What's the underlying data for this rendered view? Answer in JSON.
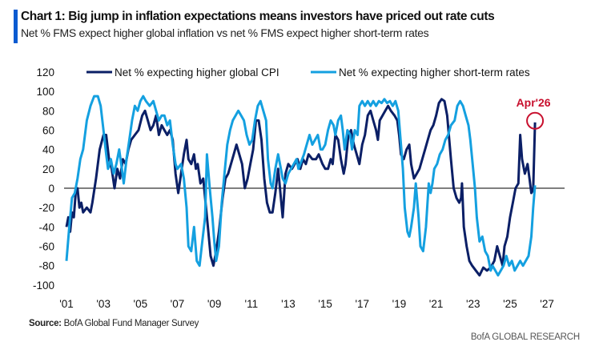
{
  "header": {
    "title": "Chart 1: Big jump in inflation expectations means investors have priced out rate cuts",
    "subtitle": "Net % FMS expect higher global inflation vs net % FMS expect higher short-term rates"
  },
  "footer": {
    "source_label": "Source:",
    "source_text": " BofA Global Fund Manager Survey",
    "brand": "BofA GLOBAL RESEARCH"
  },
  "colors": {
    "cpi": "#0b1f66",
    "rates": "#14a0e0",
    "zero_line": "#555555",
    "annotation": "#c8102e",
    "title_bar": "#0a5bd1"
  },
  "chart_data": {
    "type": "line",
    "title": "Chart 1: Big jump in inflation expectations means investors have priced out rate cuts",
    "subtitle": "Net % FMS expect higher global inflation vs net % FMS expect higher short-term rates",
    "xlabel": "",
    "ylabel": "",
    "xlim": [
      2001,
      2027.5
    ],
    "ylim": [
      -100,
      120
    ],
    "yticks": [
      120,
      100,
      80,
      60,
      40,
      20,
      0,
      -20,
      -40,
      -60,
      -80,
      -100
    ],
    "xticks": [
      {
        "value": 2001,
        "label": "'01"
      },
      {
        "value": 2003,
        "label": "'03"
      },
      {
        "value": 2005,
        "label": "'05"
      },
      {
        "value": 2007,
        "label": "'07"
      },
      {
        "value": 2009,
        "label": "'09"
      },
      {
        "value": 2011,
        "label": "'11"
      },
      {
        "value": 2013,
        "label": "'13"
      },
      {
        "value": 2015,
        "label": "'15"
      },
      {
        "value": 2017,
        "label": "'17"
      },
      {
        "value": 2019,
        "label": "'19"
      },
      {
        "value": 2021,
        "label": "'21"
      },
      {
        "value": 2023,
        "label": "'23"
      },
      {
        "value": 2025,
        "label": "'25"
      },
      {
        "value": 2027,
        "label": "'27"
      }
    ],
    "grid": false,
    "zero_line": true,
    "legend_position": "top",
    "annotation": {
      "label": "Apr'26",
      "x": 2026.35,
      "y": 68,
      "series": "Net % expecting higher global CPI"
    },
    "series": [
      {
        "name": "Net % expecting higher global CPI",
        "color": "#0b1f66",
        "x": [
          2001.0,
          2001.1,
          2001.2,
          2001.3,
          2001.4,
          2001.5,
          2001.6,
          2001.7,
          2001.8,
          2001.9,
          2002.1,
          2002.3,
          2002.4,
          2002.6,
          2002.8,
          2003.0,
          2003.15,
          2003.3,
          2003.45,
          2003.6,
          2003.75,
          2003.9,
          2004.05,
          2004.2,
          2004.35,
          2004.5,
          2004.7,
          2004.9,
          2005.1,
          2005.25,
          2005.4,
          2005.55,
          2005.7,
          2005.85,
          2006.0,
          2006.15,
          2006.3,
          2006.45,
          2006.6,
          2006.75,
          2006.9,
          2007.05,
          2007.2,
          2007.35,
          2007.5,
          2007.6,
          2007.75,
          2007.9,
          2008.0,
          2008.1,
          2008.25,
          2008.4,
          2008.5,
          2008.65,
          2008.8,
          2008.95,
          2009.1,
          2009.25,
          2009.45,
          2009.6,
          2009.75,
          2009.9,
          2010.05,
          2010.2,
          2010.35,
          2010.5,
          2010.65,
          2010.8,
          2010.95,
          2011.1,
          2011.25,
          2011.4,
          2011.55,
          2011.7,
          2011.85,
          2012.0,
          2012.15,
          2012.3,
          2012.45,
          2012.55,
          2012.7,
          2012.85,
          2013.0,
          2013.2,
          2013.35,
          2013.5,
          2013.65,
          2013.8,
          2013.95,
          2014.1,
          2014.3,
          2014.5,
          2014.65,
          2014.85,
          2015.0,
          2015.15,
          2015.3,
          2015.4,
          2015.55,
          2015.7,
          2015.85,
          2016.0,
          2016.1,
          2016.25,
          2016.4,
          2016.55,
          2016.7,
          2016.85,
          2017.0,
          2017.15,
          2017.3,
          2017.45,
          2017.6,
          2017.75,
          2017.85,
          2017.95,
          2018.1,
          2018.25,
          2018.4,
          2018.55,
          2018.75,
          2018.9,
          2019.0,
          2019.1,
          2019.25,
          2019.4,
          2019.55,
          2019.65,
          2019.8,
          2019.95,
          2020.1,
          2020.25,
          2020.4,
          2020.55,
          2020.7,
          2020.85,
          2021.0,
          2021.15,
          2021.3,
          2021.45,
          2021.6,
          2021.8,
          2021.95,
          2022.1,
          2022.25,
          2022.35,
          2022.4,
          2022.5,
          2022.65,
          2022.8,
          2022.95,
          2023.15,
          2023.35,
          2023.55,
          2023.75,
          2023.95,
          2024.15,
          2024.3,
          2024.45,
          2024.6,
          2024.7,
          2024.85,
          2025.0,
          2025.15,
          2025.3,
          2025.45,
          2025.55,
          2025.65,
          2025.8,
          2025.95,
          2026.05,
          2026.15,
          2026.25,
          2026.35
        ],
        "values": [
          -40,
          -30,
          -45,
          -25,
          -30,
          -5,
          0,
          -20,
          -15,
          -25,
          -20,
          -25,
          -15,
          10,
          40,
          55,
          55,
          30,
          20,
          0,
          20,
          10,
          30,
          25,
          40,
          50,
          55,
          60,
          75,
          80,
          70,
          60,
          65,
          75,
          55,
          65,
          60,
          55,
          60,
          50,
          15,
          -5,
          15,
          35,
          50,
          30,
          25,
          35,
          20,
          25,
          5,
          10,
          -10,
          -40,
          -70,
          -80,
          -65,
          -45,
          -10,
          10,
          15,
          25,
          35,
          45,
          35,
          25,
          0,
          10,
          25,
          40,
          70,
          70,
          50,
          10,
          -15,
          -25,
          -25,
          -5,
          20,
          0,
          -30,
          15,
          25,
          20,
          25,
          30,
          20,
          30,
          25,
          35,
          30,
          30,
          35,
          25,
          20,
          20,
          30,
          25,
          55,
          50,
          30,
          15,
          25,
          55,
          60,
          45,
          35,
          25,
          45,
          55,
          75,
          80,
          70,
          60,
          50,
          70,
          75,
          80,
          85,
          80,
          75,
          70,
          55,
          35,
          30,
          40,
          45,
          25,
          10,
          15,
          20,
          30,
          40,
          50,
          60,
          65,
          75,
          88,
          92,
          90,
          75,
          30,
          0,
          -10,
          -15,
          -10,
          5,
          -40,
          -60,
          -75,
          -80,
          -85,
          -90,
          -82,
          -85,
          -82,
          -75,
          -60,
          -70,
          -80,
          -60,
          -50,
          -30,
          -15,
          0,
          5,
          55,
          30,
          15,
          25,
          10,
          -5,
          -2,
          68
        ]
      },
      {
        "name": "Net % expecting higher short-term rates",
        "color": "#14a0e0",
        "x": [
          2001.0,
          2001.15,
          2001.3,
          2001.45,
          2001.6,
          2001.75,
          2001.9,
          2002.1,
          2002.3,
          2002.5,
          2002.7,
          2002.85,
          2003.0,
          2003.15,
          2003.25,
          2003.4,
          2003.55,
          2003.7,
          2003.85,
          2004.0,
          2004.1,
          2004.25,
          2004.4,
          2004.55,
          2004.7,
          2004.85,
          2005.0,
          2005.15,
          2005.3,
          2005.5,
          2005.7,
          2005.85,
          2006.0,
          2006.15,
          2006.3,
          2006.45,
          2006.6,
          2006.75,
          2006.9,
          2007.0,
          2007.2,
          2007.35,
          2007.5,
          2007.6,
          2007.75,
          2007.9,
          2008.05,
          2008.2,
          2008.35,
          2008.5,
          2008.6,
          2008.75,
          2008.9,
          2009.0,
          2009.1,
          2009.25,
          2009.4,
          2009.55,
          2009.7,
          2009.85,
          2010.0,
          2010.15,
          2010.3,
          2010.45,
          2010.6,
          2010.75,
          2010.9,
          2011.05,
          2011.2,
          2011.35,
          2011.5,
          2011.65,
          2011.8,
          2011.9,
          2012.05,
          2012.15,
          2012.3,
          2012.45,
          2012.55,
          2012.7,
          2012.85,
          2013.0,
          2013.15,
          2013.3,
          2013.45,
          2013.55,
          2013.65,
          2013.85,
          2014.0,
          2014.15,
          2014.3,
          2014.45,
          2014.6,
          2014.75,
          2014.85,
          2015.0,
          2015.15,
          2015.3,
          2015.45,
          2015.55,
          2015.7,
          2015.85,
          2015.95,
          2016.05,
          2016.2,
          2016.35,
          2016.45,
          2016.6,
          2016.75,
          2016.85,
          2017.0,
          2017.15,
          2017.3,
          2017.45,
          2017.6,
          2017.75,
          2017.9,
          2018.05,
          2018.2,
          2018.35,
          2018.5,
          2018.65,
          2018.8,
          2018.95,
          2019.1,
          2019.2,
          2019.3,
          2019.45,
          2019.55,
          2019.65,
          2019.8,
          2019.9,
          2020.05,
          2020.15,
          2020.3,
          2020.45,
          2020.6,
          2020.7,
          2020.8,
          2020.9,
          2021.05,
          2021.2,
          2021.35,
          2021.5,
          2021.65,
          2021.8,
          2022.0,
          2022.15,
          2022.3,
          2022.45,
          2022.6,
          2022.75,
          2022.85,
          2023.0,
          2023.1,
          2023.2,
          2023.35,
          2023.5,
          2023.65,
          2023.8,
          2023.95,
          2024.05,
          2024.2,
          2024.35,
          2024.5,
          2024.65,
          2024.8,
          2024.95,
          2025.1,
          2025.25,
          2025.4,
          2025.55,
          2025.7,
          2025.85,
          2026.0,
          2026.15,
          2026.25,
          2026.35
        ],
        "values": [
          -75,
          -40,
          -10,
          -5,
          10,
          30,
          40,
          70,
          85,
          95,
          95,
          85,
          60,
          35,
          20,
          30,
          15,
          25,
          40,
          20,
          5,
          30,
          50,
          70,
          85,
          80,
          90,
          95,
          90,
          85,
          90,
          80,
          70,
          75,
          75,
          65,
          70,
          45,
          25,
          20,
          25,
          10,
          -20,
          -60,
          -65,
          -40,
          -75,
          -80,
          -55,
          -30,
          35,
          0,
          -30,
          -55,
          -75,
          -60,
          -15,
          15,
          45,
          60,
          70,
          75,
          80,
          75,
          70,
          55,
          45,
          50,
          70,
          85,
          90,
          80,
          70,
          30,
          5,
          0,
          20,
          35,
          25,
          10,
          5,
          15,
          20,
          25,
          30,
          20,
          25,
          35,
          45,
          55,
          45,
          50,
          55,
          40,
          40,
          45,
          60,
          70,
          65,
          55,
          70,
          75,
          60,
          40,
          60,
          55,
          40,
          60,
          55,
          85,
          90,
          85,
          90,
          85,
          90,
          85,
          90,
          88,
          92,
          88,
          90,
          85,
          90,
          80,
          45,
          20,
          -20,
          -45,
          -50,
          -40,
          -20,
          5,
          -30,
          -60,
          -65,
          -40,
          5,
          -5,
          5,
          20,
          25,
          35,
          40,
          50,
          55,
          65,
          70,
          85,
          90,
          85,
          75,
          65,
          50,
          20,
          0,
          -30,
          -55,
          -50,
          -65,
          -70,
          -85,
          -80,
          -85,
          -90,
          -85,
          -80,
          -70,
          -80,
          -75,
          -85,
          -80,
          -75,
          -80,
          -75,
          -70,
          -50,
          -20,
          3
        ]
      }
    ]
  }
}
